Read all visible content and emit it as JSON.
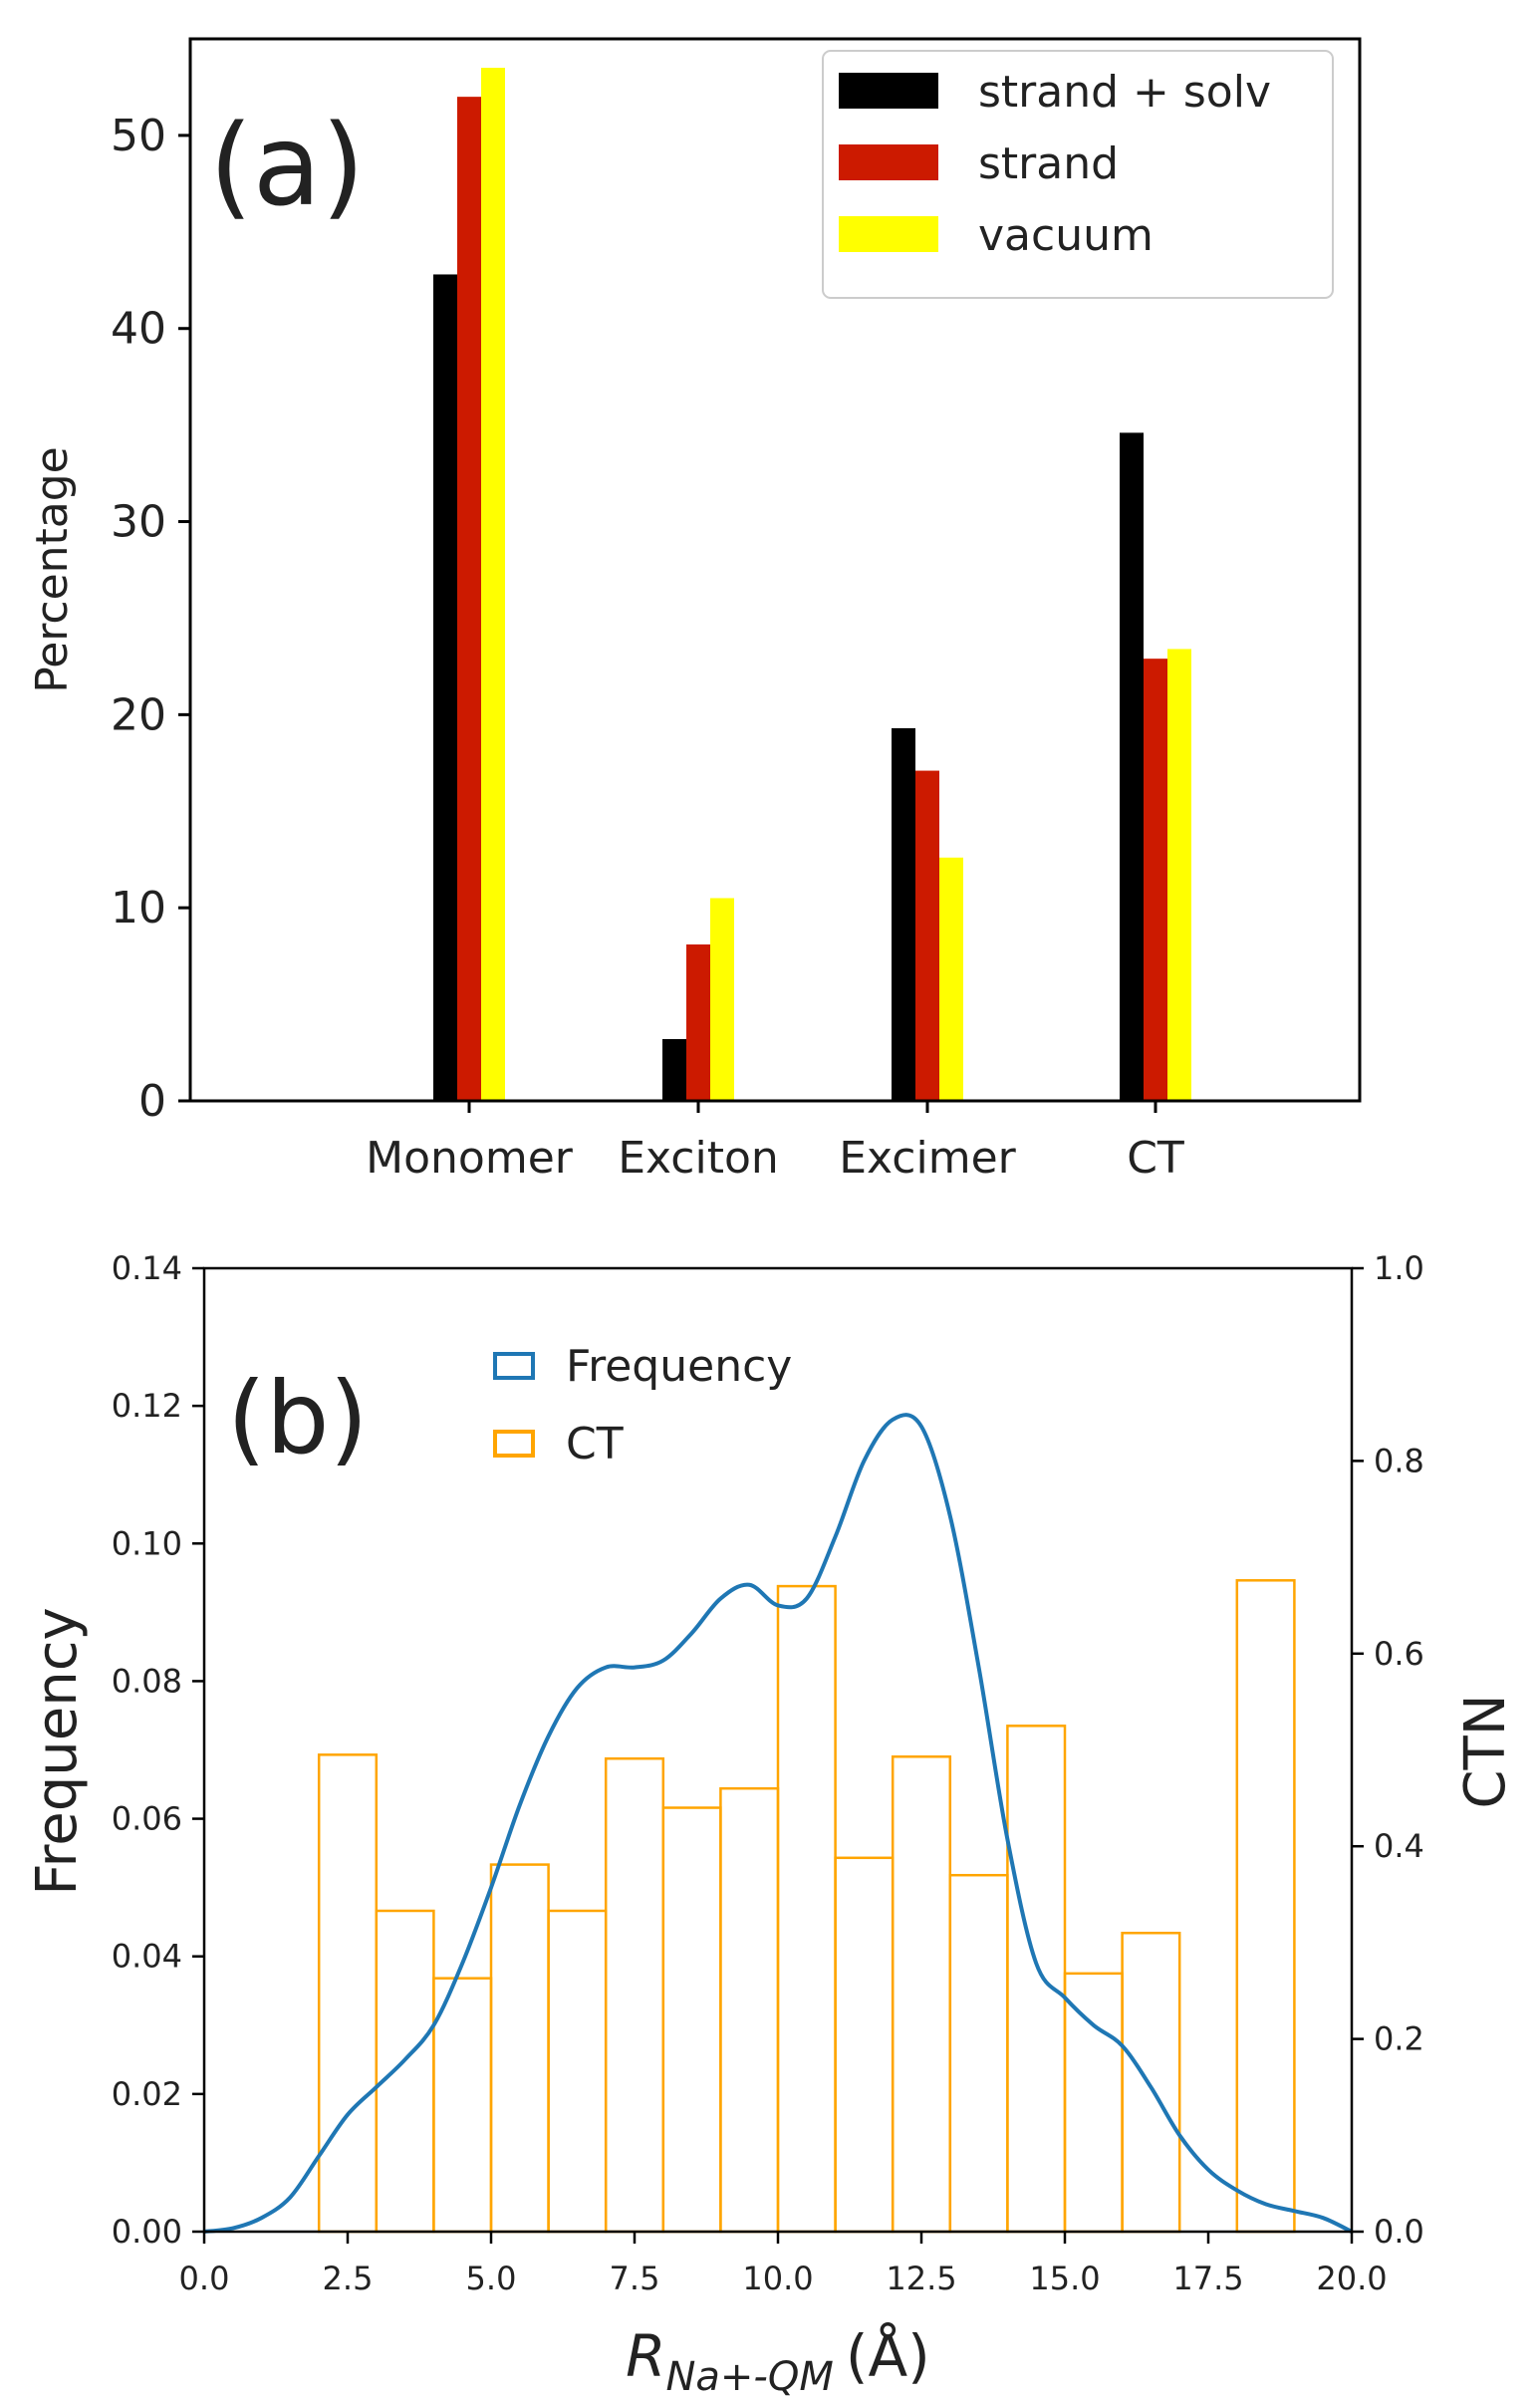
{
  "chart_data": [
    {
      "type": "bar",
      "panel_label": "(a)",
      "title": "",
      "xlabel": "",
      "ylabel": "Percentage",
      "categories": [
        "Monomer",
        "Exciton",
        "Excimer",
        "CT"
      ],
      "ylim": [
        0,
        55
      ],
      "yticks": [
        "0",
        "10",
        "20",
        "30",
        "40",
        "50"
      ],
      "series": [
        {
          "name": "strand + solv",
          "color": "#000000",
          "values": [
            42.8,
            3.2,
            19.3,
            34.6
          ]
        },
        {
          "name": "strand",
          "color": "#cc1a00",
          "values": [
            52.0,
            8.1,
            17.1,
            22.9
          ]
        },
        {
          "name": "vacuum",
          "color": "#ffff00",
          "values": [
            53.5,
            10.5,
            12.6,
            23.4
          ]
        }
      ],
      "legend_position": "top-right"
    },
    {
      "type": "histogram+line",
      "panel_label": "(b)",
      "title": "",
      "xlabel": "R",
      "xlabel_sub": "Na+-QM",
      "xlabel_unit": "(Å)",
      "ylabel": "Frequency",
      "y2label": "CTN",
      "xlim": [
        0,
        20
      ],
      "ylim": [
        0,
        0.14
      ],
      "y2lim": [
        0,
        1.0
      ],
      "xticks": [
        "0.0",
        "2.5",
        "5.0",
        "7.5",
        "10.0",
        "12.5",
        "15.0",
        "17.5",
        "20.0"
      ],
      "yticks": [
        "0.00",
        "0.02",
        "0.04",
        "0.06",
        "0.08",
        "0.10",
        "0.12",
        "0.14"
      ],
      "y2ticks": [
        "0.0",
        "0.2",
        "0.4",
        "0.6",
        "0.8",
        "1.0"
      ],
      "legend_position": "upper-center",
      "legend": [
        "Frequency",
        "CT"
      ],
      "line": {
        "name": "Frequency",
        "color": "#1f77b4",
        "x": [
          0,
          0.5,
          1,
          1.5,
          2,
          2.5,
          3,
          3.5,
          4,
          4.5,
          5,
          5.5,
          6,
          6.5,
          7,
          7.5,
          8,
          8.5,
          9,
          9.5,
          10,
          10.5,
          11,
          11.5,
          12,
          12.5,
          13,
          13.5,
          14,
          14.5,
          15,
          15.5,
          16,
          16.5,
          17,
          17.5,
          18,
          18.5,
          19,
          19.5,
          20
        ],
        "y": [
          0.0,
          0.0005,
          0.002,
          0.005,
          0.011,
          0.017,
          0.021,
          0.025,
          0.03,
          0.039,
          0.05,
          0.062,
          0.072,
          0.079,
          0.082,
          0.082,
          0.083,
          0.087,
          0.092,
          0.094,
          0.091,
          0.092,
          0.101,
          0.112,
          0.118,
          0.117,
          0.104,
          0.082,
          0.057,
          0.039,
          0.034,
          0.03,
          0.027,
          0.021,
          0.014,
          0.009,
          0.006,
          0.004,
          0.003,
          0.002,
          0.0
        ]
      },
      "histogram": {
        "name": "CT",
        "color": "#ffa500",
        "axis": "y2",
        "bins": [
          {
            "x0": 2,
            "x1": 3,
            "value": 0.495
          },
          {
            "x0": 3,
            "x1": 4,
            "value": 0.333
          },
          {
            "x0": 4,
            "x1": 5,
            "value": 0.263
          },
          {
            "x0": 5,
            "x1": 6,
            "value": 0.381
          },
          {
            "x0": 6,
            "x1": 7,
            "value": 0.333
          },
          {
            "x0": 7,
            "x1": 8,
            "value": 0.491
          },
          {
            "x0": 8,
            "x1": 9,
            "value": 0.44
          },
          {
            "x0": 9,
            "x1": 10,
            "value": 0.46
          },
          {
            "x0": 10,
            "x1": 11,
            "value": 0.67
          },
          {
            "x0": 11,
            "x1": 12,
            "value": 0.388
          },
          {
            "x0": 12,
            "x1": 13,
            "value": 0.493
          },
          {
            "x0": 13,
            "x1": 14,
            "value": 0.37
          },
          {
            "x0": 14,
            "x1": 15,
            "value": 0.525
          },
          {
            "x0": 15,
            "x1": 16,
            "value": 0.268
          },
          {
            "x0": 16,
            "x1": 17,
            "value": 0.31
          },
          {
            "x0": 18,
            "x1": 19,
            "value": 0.676
          }
        ]
      }
    }
  ]
}
